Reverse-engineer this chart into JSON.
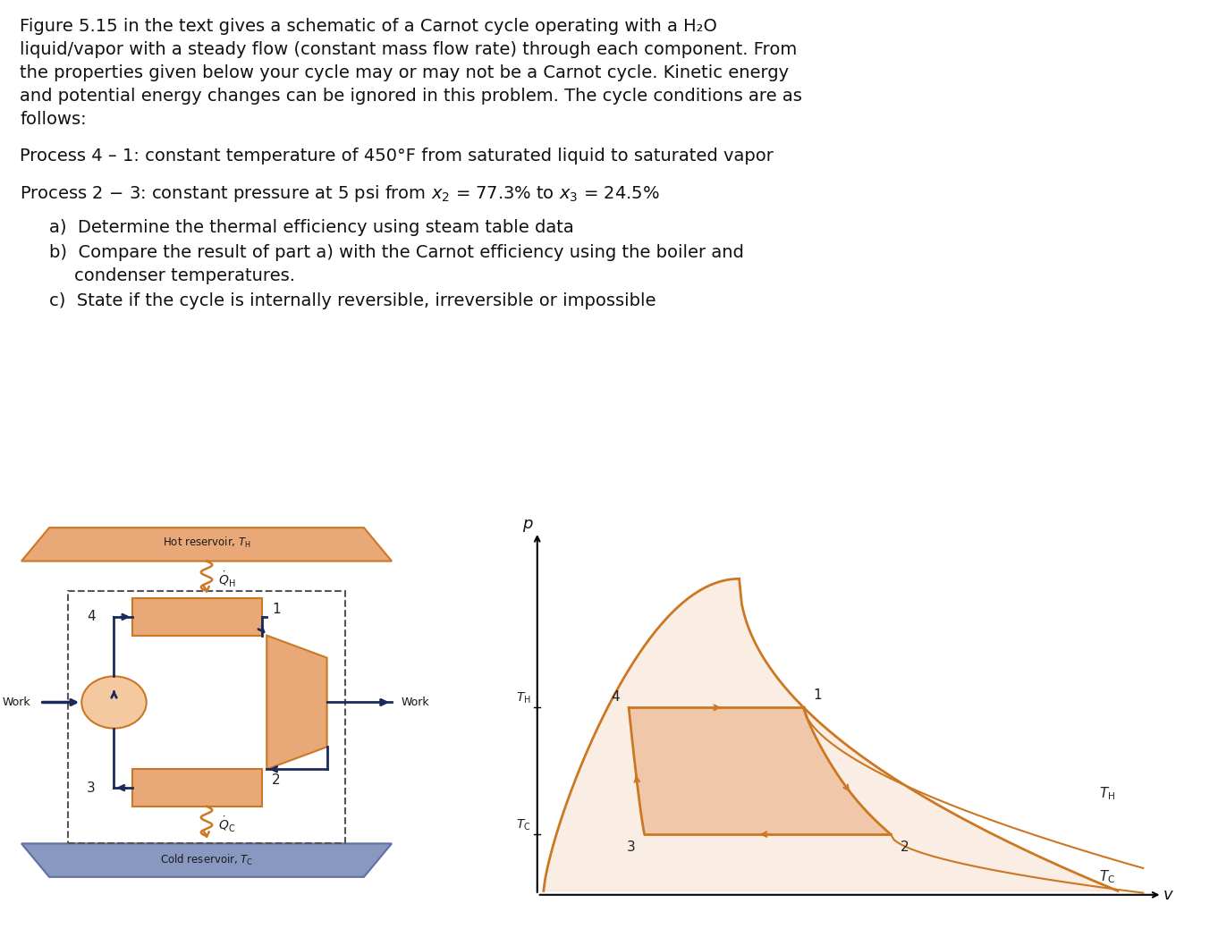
{
  "bg_color": "#ffffff",
  "orange_color": "#CC7722",
  "orange_fill": "#E8A878",
  "orange_light": "#F5C9A0",
  "orange_very_light": "#FCDFC0",
  "blue_dark": "#1A2B5A",
  "blue_gray": "#6070A0",
  "blue_light_fill": "#8898C0",
  "blue_med": "#4A5A8A",
  "line_color": "#1A2B5A",
  "p1_lines": [
    "Figure 5.15 in the text gives a schematic of a Carnot cycle operating with a H₂O",
    "liquid/vapor with a steady flow (constant mass flow rate) through each component. From",
    "the properties given below your cycle may or may not be a Carnot cycle. Kinetic energy",
    "and potential energy changes can be ignored in this problem. The cycle conditions are as",
    "follows:"
  ],
  "p2": "Process 4 – 1: constant temperature of 450°F from saturated liquid to saturated vapor",
  "p3_prefix": "Process 2 – 3: constant pressure at 5 psi from ",
  "p3_suffix": " = 77.3% to ",
  "p3_end": " = 24.5%",
  "item_a": "Determine the thermal efficiency using steam table data",
  "item_b1": "Compare the result of part a) with the Carnot efficiency using the boiler and",
  "item_b2": "condenser temperatures.",
  "item_c": "State if the cycle is internally reversible, irreversible or impossible",
  "font_size_body": 14.0,
  "font_size_small": 9.5
}
